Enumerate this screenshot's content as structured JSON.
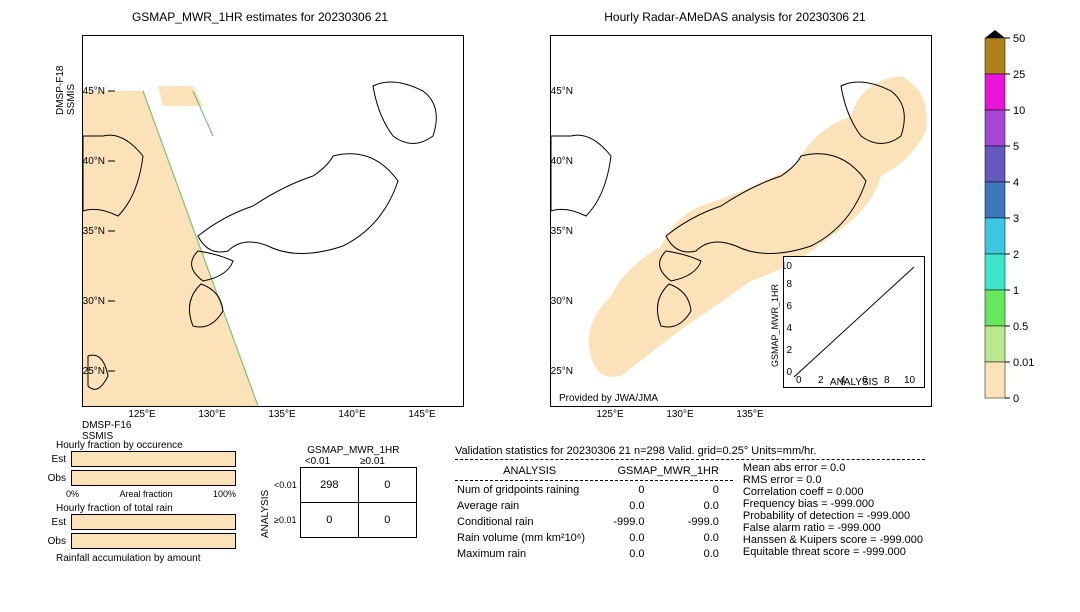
{
  "left_map": {
    "title": "GSMAP_MWR_1HR estimates for 20230306 21",
    "y_label_top": "DMSP-F18\nSSMIS",
    "y_label_bottom": "DMSP-F16\nSSMIS",
    "lat_ticks": [
      "45°N",
      "40°N",
      "35°N",
      "30°N",
      "25°N"
    ],
    "lon_ticks": [
      "125°E",
      "130°E",
      "135°E",
      "140°E",
      "145°E"
    ],
    "swath_color": "#fbe2b9",
    "swath_edge": "#7dc276"
  },
  "right_map": {
    "title": "Hourly Radar-AMeDAS analysis for 20230306 21",
    "lat_ticks": [
      "45°N",
      "40°N",
      "35°N",
      "30°N",
      "25°N"
    ],
    "lon_ticks": [
      "125°E",
      "130°E",
      "135°E"
    ],
    "footer": "Provided by JWA/JMA",
    "coverage_color": "#fbe2b9"
  },
  "scatter_inset": {
    "xlabel": "ANALYSIS",
    "ylabel": "GSMAP_MWR_1HR",
    "ticks": [
      "0",
      "2",
      "4",
      "6",
      "8",
      "10"
    ]
  },
  "colorbar": {
    "levels": [
      "50",
      "25",
      "10",
      "5",
      "4",
      "3",
      "2",
      "1",
      "0.5",
      "0.01",
      "0"
    ],
    "colors": [
      "#b0811b",
      "#e916da",
      "#a646d4",
      "#6558c1",
      "#3e76be",
      "#3ec7e3",
      "#3de6c7",
      "#67e65e",
      "#b9e88f",
      "#fbe2b9"
    ],
    "top_arrow": "#000000"
  },
  "bars": {
    "section1_title": "Hourly fraction by occurence",
    "section2_title": "Hourly fraction of total rain",
    "section3_title": "Rainfall accumulation by amount",
    "row_labels": [
      "Est",
      "Obs"
    ],
    "x_ticks": [
      "0%",
      "Areal fraction",
      "100%"
    ],
    "est1_fill": 1.0,
    "obs1_fill": 1.0,
    "est2_fill": 1.0,
    "obs2_fill": 1.0,
    "fill_color": "#fbe2b9"
  },
  "contingency": {
    "col_header": "GSMAP_MWR_1HR",
    "row_header": "ANALYSIS",
    "col_labels": [
      "<0.01",
      "≥0.01"
    ],
    "row_labels": [
      "<0.01",
      "≥0.01"
    ],
    "cells": [
      [
        "298",
        "0"
      ],
      [
        "0",
        "0"
      ]
    ]
  },
  "validation": {
    "header": "Validation statistics for 20230306 21  n=298 Valid. grid=0.25° Units=mm/hr.",
    "table_headers": [
      "",
      "ANALYSIS",
      "GSMAP_MWR_1HR"
    ],
    "rows": [
      {
        "label": "Num of gridpoints raining",
        "a": "0",
        "b": "0"
      },
      {
        "label": "Average rain",
        "a": "0.0",
        "b": "0.0"
      },
      {
        "label": "Conditional rain",
        "a": "-999.0",
        "b": "-999.0"
      },
      {
        "label": "Rain volume (mm km²10⁶)",
        "a": "0.0",
        "b": "0.0"
      },
      {
        "label": "Maximum rain",
        "a": "0.0",
        "b": "0.0"
      }
    ],
    "stats": [
      "Mean abs error =    0.0",
      "RMS error =    0.0",
      "Correlation coeff =  0.000",
      "Frequency bias = -999.000",
      "Probability of detection = -999.000",
      "False alarm ratio = -999.000",
      "Hanssen & Kuipers score = -999.000",
      "Equitable threat score = -999.000"
    ]
  }
}
